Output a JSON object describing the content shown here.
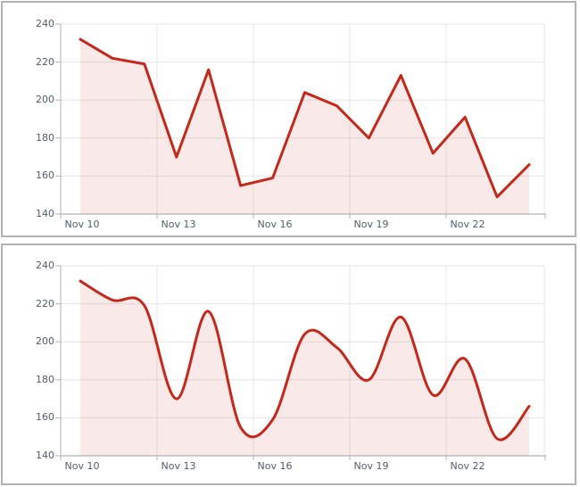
{
  "palette": {
    "line": "#c4281b",
    "fill": "rgba(196,40,27,0.10)",
    "grid": "#e6e6e6",
    "axis": "#b3b3b3",
    "axis_bottom": "#9f9f9f",
    "label": "#545b6b",
    "panel_border": "#b2b2b2",
    "background": "#ffffff"
  },
  "chart_data": [
    {
      "type": "area",
      "curve": "straight",
      "title": "",
      "x_dates": [
        "Nov 10",
        "Nov 11",
        "Nov 12",
        "Nov 13",
        "Nov 14",
        "Nov 15",
        "Nov 16",
        "Nov 17",
        "Nov 18",
        "Nov 19",
        "Nov 20",
        "Nov 21",
        "Nov 22",
        "Nov 23",
        "Nov 24"
      ],
      "values": [
        232,
        222,
        219,
        170,
        216,
        155,
        159,
        204,
        197,
        180,
        213,
        172,
        191,
        149,
        166
      ],
      "xticks": [
        "Nov 10",
        "Nov 13",
        "Nov 16",
        "Nov 19",
        "Nov 22"
      ],
      "yticks": [
        "240",
        "220",
        "200",
        "180",
        "160",
        "140"
      ],
      "ylim": [
        140,
        240
      ],
      "grid": true,
      "legend": "none"
    },
    {
      "type": "area",
      "curve": "smooth",
      "title": "",
      "x_dates": [
        "Nov 10",
        "Nov 11",
        "Nov 12",
        "Nov 13",
        "Nov 14",
        "Nov 15",
        "Nov 16",
        "Nov 17",
        "Nov 18",
        "Nov 19",
        "Nov 20",
        "Nov 21",
        "Nov 22",
        "Nov 23",
        "Nov 24"
      ],
      "values": [
        232,
        222,
        219,
        170,
        216,
        155,
        159,
        204,
        197,
        180,
        213,
        172,
        191,
        149,
        166
      ],
      "xticks": [
        "Nov 10",
        "Nov 13",
        "Nov 16",
        "Nov 19",
        "Nov 22"
      ],
      "yticks": [
        "240",
        "220",
        "200",
        "180",
        "160",
        "140"
      ],
      "ylim": [
        140,
        240
      ],
      "grid": true,
      "legend": "none"
    }
  ]
}
